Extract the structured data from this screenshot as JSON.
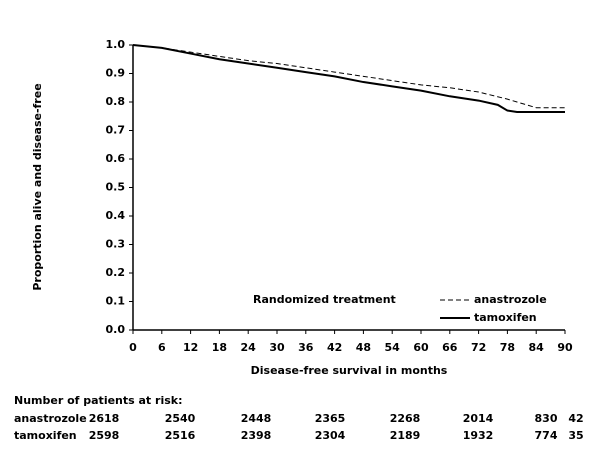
{
  "chart_data": {
    "type": "line",
    "y_label": "Proportion alive and disease-free",
    "x_label": "Disease-free survival in months",
    "legend_title": "Randomized treatment",
    "legend_position": "lower right",
    "xlim": [
      0,
      90
    ],
    "xticks": [
      0,
      6,
      12,
      18,
      24,
      30,
      36,
      42,
      48,
      54,
      60,
      66,
      72,
      78,
      84,
      90
    ],
    "ylim": [
      0,
      1
    ],
    "yticks": [
      {
        "value": 0,
        "label": "0.0"
      },
      0.1,
      0.2,
      0.3,
      0.4,
      0.5,
      0.6,
      0.7,
      0.8,
      0.9,
      {
        "value": 1,
        "label": "1.0"
      }
    ],
    "series": [
      {
        "name": "anastrozole",
        "color": "#000000",
        "style": "dashed",
        "x": [
          0,
          6,
          12,
          18,
          24,
          30,
          36,
          42,
          48,
          54,
          60,
          66,
          72,
          78,
          82,
          84,
          90
        ],
        "values": [
          1.0,
          0.99,
          0.975,
          0.96,
          0.945,
          0.935,
          0.92,
          0.905,
          0.89,
          0.875,
          0.86,
          0.85,
          0.835,
          0.81,
          0.79,
          0.78,
          0.78
        ]
      },
      {
        "name": "tamoxifen",
        "color": "#000000",
        "style": "solid",
        "x": [
          0,
          6,
          12,
          18,
          24,
          30,
          36,
          42,
          48,
          54,
          60,
          66,
          72,
          76,
          78,
          80,
          90
        ],
        "values": [
          1.0,
          0.99,
          0.97,
          0.95,
          0.935,
          0.92,
          0.905,
          0.89,
          0.87,
          0.855,
          0.84,
          0.82,
          0.805,
          0.79,
          0.77,
          0.765,
          0.765
        ]
      }
    ],
    "risk_table": {
      "title": "Number of patients at risk:",
      "rows": [
        {
          "name": "anastrozole",
          "values": [
            2618,
            2540,
            2448,
            2365,
            2268,
            2014,
            830,
            42
          ]
        },
        {
          "name": "tamoxifen",
          "values": [
            2598,
            2516,
            2398,
            2304,
            2189,
            1932,
            774,
            35
          ]
        }
      ]
    }
  }
}
